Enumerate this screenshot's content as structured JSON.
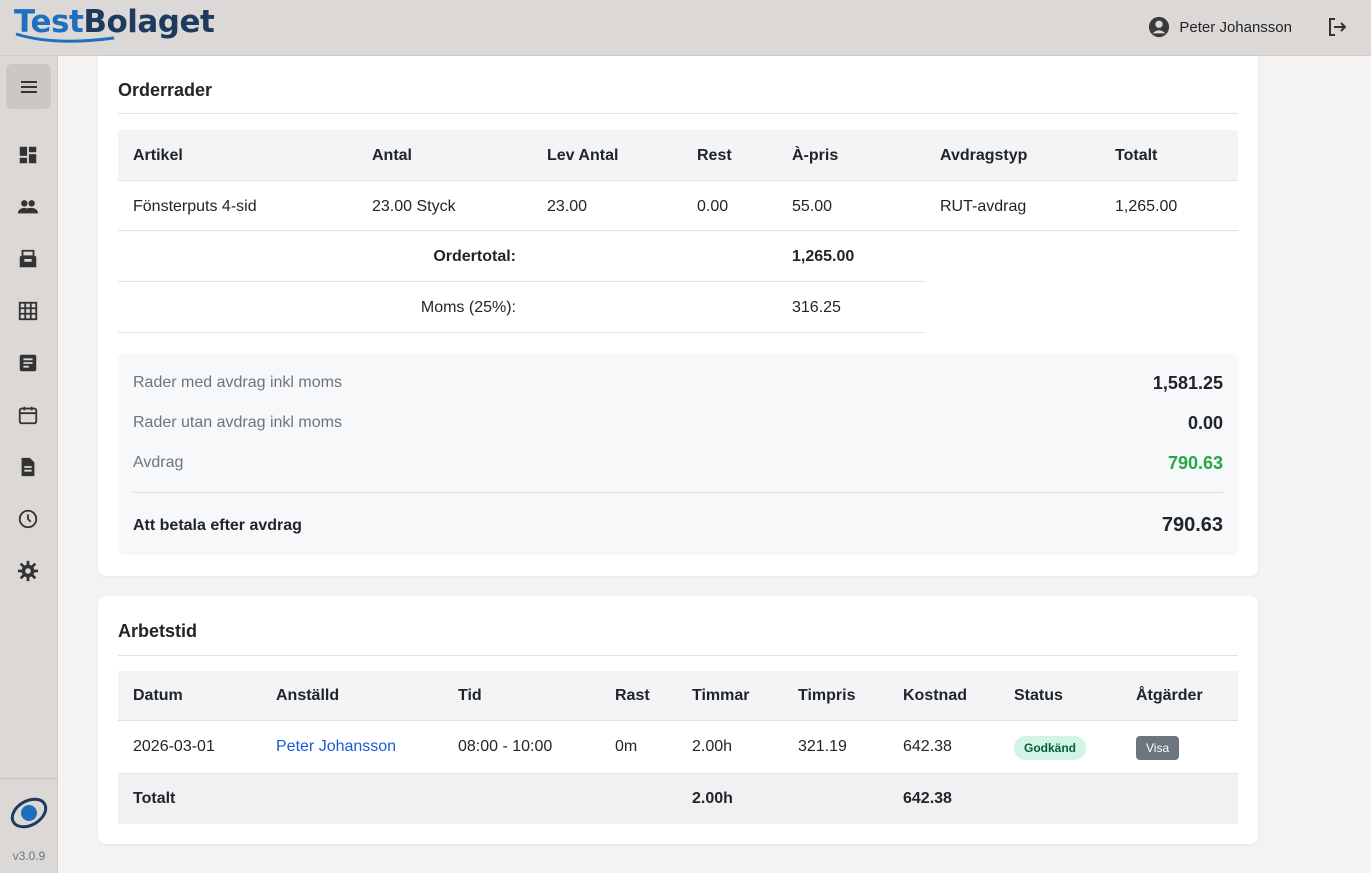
{
  "header": {
    "logo_part1": "Test",
    "logo_part2": "Bolaget",
    "user_name": "Peter Johansson"
  },
  "sidebar": {
    "items": [
      {
        "icon": "dashboard-icon"
      },
      {
        "icon": "people-icon"
      },
      {
        "icon": "inbox-icon"
      },
      {
        "icon": "grid-icon"
      },
      {
        "icon": "document-icon"
      },
      {
        "icon": "calendar-icon"
      },
      {
        "icon": "file-icon"
      },
      {
        "icon": "clock-icon"
      },
      {
        "icon": "gear-icon"
      }
    ],
    "version": "v3.0.9"
  },
  "orderrader": {
    "title": "Orderrader",
    "columns": [
      "Artikel",
      "Antal",
      "Lev Antal",
      "Rest",
      "À-pris",
      "Avdragstyp",
      "Totalt"
    ],
    "rows": [
      {
        "artikel": "Fönsterputs 4-sid",
        "antal": "23.00 Styck",
        "lev_antal": "23.00",
        "rest": "0.00",
        "a_pris": "55.00",
        "avdragstyp": "RUT-avdrag",
        "totalt": "1,265.00"
      }
    ],
    "ordertotal_label": "Ordertotal:",
    "ordertotal_value": "1,265.00",
    "moms_label": "Moms (25%):",
    "moms_value": "316.25"
  },
  "summary": {
    "rader_med_label": "Rader med avdrag inkl moms",
    "rader_med_value": "1,581.25",
    "rader_utan_label": "Rader utan avdrag inkl moms",
    "rader_utan_value": "0.00",
    "avdrag_label": "Avdrag",
    "avdrag_value": "790.63",
    "att_betala_label": "Att betala efter avdrag",
    "att_betala_value": "790.63",
    "avdrag_color": "#28a745"
  },
  "arbetstid": {
    "title": "Arbetstid",
    "columns": [
      "Datum",
      "Anställd",
      "Tid",
      "Rast",
      "Timmar",
      "Timpris",
      "Kostnad",
      "Status",
      "Åtgärder"
    ],
    "rows": [
      {
        "datum": "2026-03-01",
        "anstalld": "Peter Johansson",
        "tid": "08:00 - 10:00",
        "rast": "0m",
        "timmar": "2.00h",
        "timpris": "321.19",
        "kostnad": "642.38",
        "status": "Godkänd",
        "action": "Visa"
      }
    ],
    "total_label": "Totalt",
    "total_timmar": "2.00h",
    "total_kostnad": "642.38"
  }
}
